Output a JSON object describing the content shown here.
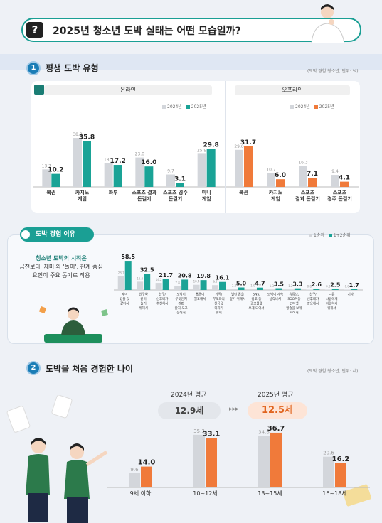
{
  "header": {
    "title": "2025년 청소년 도박 실태는 어떤 모습일까?",
    "icon": "question-icon"
  },
  "section1": {
    "number": "1",
    "title": "평생 도박 유형",
    "source": "(도박 경험 청소년, 단위: %)",
    "online": {
      "label": "온라인",
      "legend": [
        "2024년",
        "2025년"
      ]
    },
    "offline": {
      "label": "오프라인",
      "legend": [
        "2024년",
        "2025년"
      ]
    }
  },
  "section_reason": {
    "tag": "도박 경험 이유",
    "text_strong": "청소년 도박의 시작은",
    "text_body": "금전보다 '재미'와 '놀이', 관계 중심 요인이 주요 동기로 작용",
    "legend": [
      "1순위",
      "1+2순위"
    ]
  },
  "section2": {
    "number": "2",
    "title": "도박을 처음 경험한 나이",
    "source": "(도박 경험 청소년, 단위: 세)",
    "avg2024_label": "2024년 평균",
    "avg2024_value": "12.9세",
    "avg2025_label": "2025년 평균",
    "avg2025_value": "12.5세",
    "arrow": "▸▸▸"
  },
  "colors": {
    "teal": "#1aa396",
    "orange": "#f07a3a",
    "gray": "#d3d6db",
    "blue": "#1a7db6"
  },
  "chart_data": [
    {
      "type": "bar",
      "categories": [
        "복권",
        "카지노\n게임",
        "화투",
        "스포츠 결과\n돈걸기",
        "스포츠 경주\n돈걸기",
        "미니\n게임"
      ],
      "series": [
        {
          "name": "2024년",
          "values": [
            13.7,
            38.3,
            18.7,
            23.0,
            9.7,
            25.9
          ]
        },
        {
          "name": "2025년",
          "values": [
            10.2,
            35.8,
            17.2,
            16.0,
            3.1,
            29.8
          ]
        }
      ],
      "title": "온라인"
    },
    {
      "type": "bar",
      "categories": [
        "복권",
        "카지노\n게임",
        "스포츠\n결과 돈걸기",
        "스포츠\n경주 돈걸기"
      ],
      "series": [
        {
          "name": "2024년",
          "values": [
            29.0,
            10.7,
            16.3,
            9.4
          ]
        },
        {
          "name": "2025년",
          "values": [
            31.7,
            6.0,
            7.1,
            4.1
          ]
        }
      ],
      "title": "오프라인"
    },
    {
      "type": "bar",
      "categories": [
        "재미\n있을 것\n같아서",
        "친구와\n같이\n놀기\n위해서",
        "친구/\n선후배가\n추천해서",
        "도박이\n무엇인지\n관련\n알지 모고\n싶어서",
        "용돈이\n필요해서",
        "가족/\n부모와의\n친목용\n디지기\n위해",
        "빌린 돈을\n갚기 위해서",
        "SNS,\n광고 등\n광고물을\n보게 되어서",
        "도박이 계속\n생각나서",
        "유튜브,\nSOOP 등\n인터넷\n방송을 보게\n되어서",
        "친구/\n선후배가\n강요해서",
        "다른\n사람에게\n자랑하기\n위해서",
        "기타"
      ],
      "series": [
        {
          "name": "1순위",
          "values": [
            28.1,
            16.6,
            14.2,
            7.8,
            10.4,
            9.7,
            2.2,
            1.9,
            1.3,
            1.2,
            0.8,
            0.8,
            0.8
          ]
        },
        {
          "name": "1+2순위",
          "values": [
            58.5,
            32.5,
            21.7,
            20.8,
            19.8,
            16.1,
            5.0,
            4.7,
            3.5,
            3.3,
            2.6,
            2.5,
            1.7
          ]
        }
      ]
    },
    {
      "type": "bar",
      "categories": [
        "9세 이하",
        "10~12세",
        "13~15세",
        "16~18세"
      ],
      "series": [
        {
          "name": "2024년",
          "values": [
            9.6,
            35.3,
            34.6,
            20.6
          ]
        },
        {
          "name": "2025년",
          "values": [
            14.0,
            33.1,
            36.7,
            16.2
          ]
        }
      ]
    }
  ]
}
